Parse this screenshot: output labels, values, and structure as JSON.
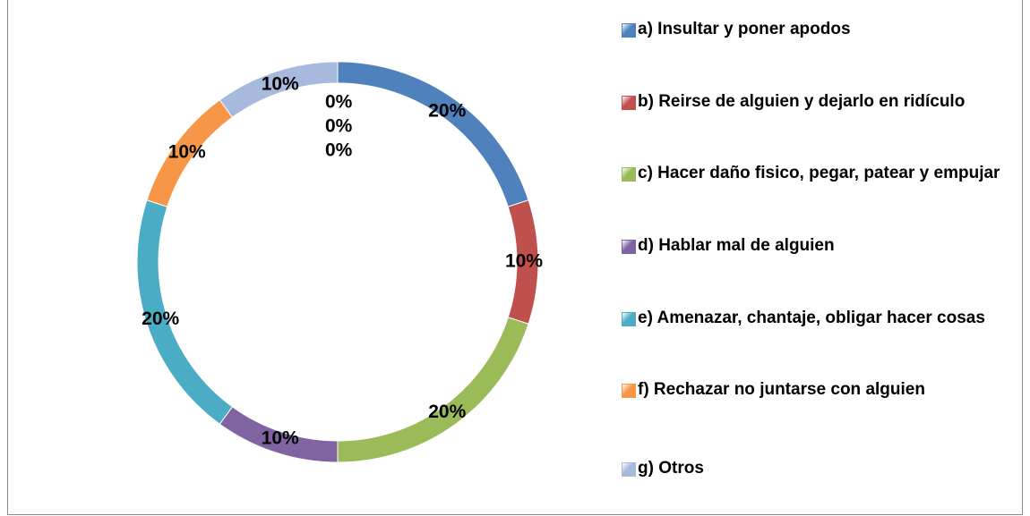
{
  "chart_data": {
    "type": "donut",
    "categories": [
      "a) Insultar y poner apodos",
      "b) Reirse de alguien y dejarlo en ridículo",
      "c) Hacer daño fisico, pegar, patear y empujar",
      "d) Hablar mal de alguien",
      "e) Amenazar, chantaje, obligar hacer cosas",
      "f) Rechazar no juntarse con alguien",
      "g) Otros",
      null,
      null,
      null
    ],
    "values": [
      20,
      10,
      20,
      10,
      20,
      10,
      10,
      0,
      0,
      0
    ],
    "value_labels": [
      "20%",
      "10%",
      "20%",
      "10%",
      "20%",
      "10%",
      "10%",
      "0%",
      "0%",
      "0%"
    ],
    "colors": [
      "#4f81bd",
      "#c0504d",
      "#9bbb59",
      "#8064a2",
      "#4bacc6",
      "#f79646",
      "#a7b9dc",
      "#4f81bd",
      "#c0504d",
      "#9bbb59"
    ],
    "legend": "right"
  }
}
